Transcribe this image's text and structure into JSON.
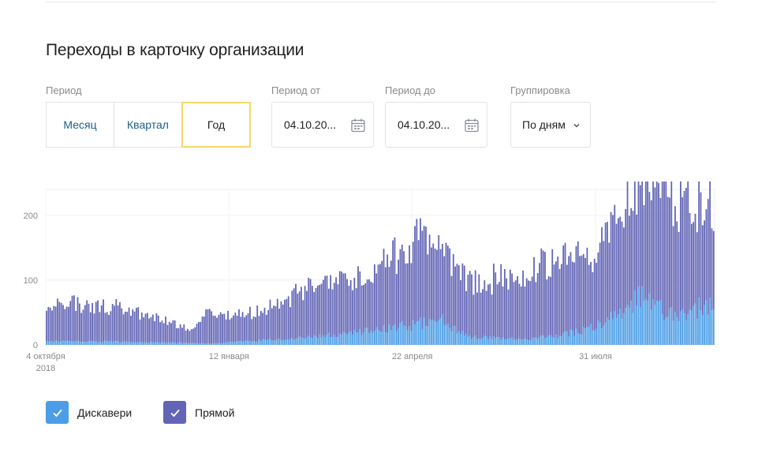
{
  "title": "Переходы в карточку организации",
  "filters": {
    "period_label": "Период",
    "period_options": [
      "Месяц",
      "Квартал",
      "Год"
    ],
    "period_selected": "Год",
    "from_label": "Период от",
    "from_value": "04.10.20...",
    "to_label": "Период до",
    "to_value": "04.10.20...",
    "grouping_label": "Группировка",
    "grouping_value": "По дням"
  },
  "colors": {
    "direct": "#6264b5",
    "discovery": "#4a9de6",
    "active_border": "#f5d76e",
    "link": "#1a5e8a"
  },
  "chart_data": {
    "type": "bar",
    "stacked": true,
    "ylim": [
      0,
      240
    ],
    "yticks": [
      0,
      100,
      200
    ],
    "xtick_labels": [
      {
        "x": 0,
        "lines": [
          "4 октября",
          "2018"
        ]
      },
      {
        "x": 100,
        "lines": [
          "12 января"
        ]
      },
      {
        "x": 200,
        "lines": [
          "22 апреля"
        ]
      },
      {
        "x": 300,
        "lines": [
          "31 июля"
        ]
      }
    ],
    "x_days": 365,
    "grid": true,
    "series": [
      {
        "name": "Дискавери",
        "color": "#4a9de6",
        "anchors": [
          [
            0,
            6
          ],
          [
            60,
            4
          ],
          [
            90,
            2
          ],
          [
            110,
            6
          ],
          [
            140,
            10
          ],
          [
            170,
            20
          ],
          [
            200,
            30
          ],
          [
            215,
            40
          ],
          [
            230,
            12
          ],
          [
            260,
            8
          ],
          [
            280,
            14
          ],
          [
            300,
            28
          ],
          [
            315,
            50
          ],
          [
            325,
            80
          ],
          [
            340,
            46
          ],
          [
            355,
            56
          ],
          [
            365,
            58
          ]
        ]
      },
      {
        "name": "Прямой",
        "color": "#6264b5",
        "anchors": [
          [
            0,
            62
          ],
          [
            40,
            52
          ],
          [
            70,
            30
          ],
          [
            80,
            18
          ],
          [
            90,
            55
          ],
          [
            100,
            40
          ],
          [
            120,
            48
          ],
          [
            140,
            75
          ],
          [
            160,
            78
          ],
          [
            180,
            92
          ],
          [
            200,
            128
          ],
          [
            215,
            120
          ],
          [
            230,
            82
          ],
          [
            250,
            94
          ],
          [
            270,
            110
          ],
          [
            290,
            115
          ],
          [
            300,
            120
          ],
          [
            320,
            175
          ],
          [
            330,
            200
          ],
          [
            340,
            190
          ],
          [
            355,
            170
          ],
          [
            365,
            150
          ]
        ]
      }
    ]
  },
  "legend": [
    {
      "label": "Дискавери",
      "color": "#4a9de6",
      "checked": true
    },
    {
      "label": "Прямой",
      "color": "#6264b5",
      "checked": true
    }
  ]
}
